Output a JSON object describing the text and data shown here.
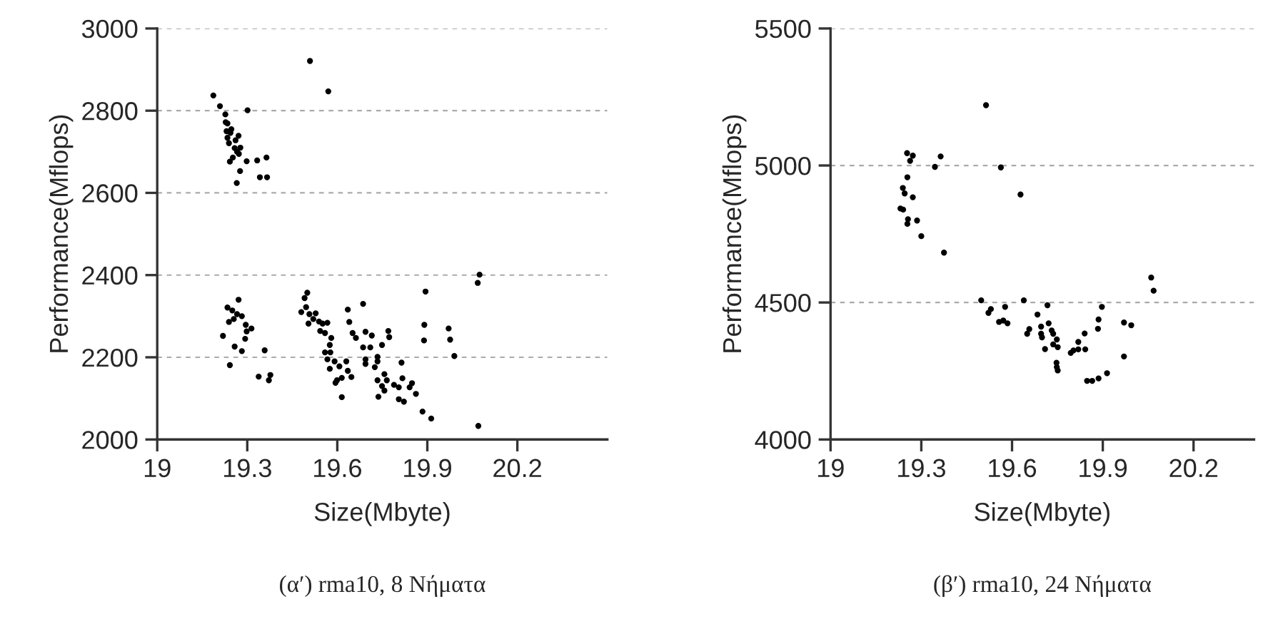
{
  "chart_data": [
    {
      "type": "scatter",
      "xlabel": "Size(Mbyte)",
      "ylabel": "Performance(Mflops)",
      "annotations": [
        "(α′) rma10, 8 Νήματα"
      ],
      "xlim": [
        19,
        20.5
      ],
      "xticks": [
        19,
        19.3,
        19.6,
        19.9,
        20.2
      ],
      "ylim": [
        2000,
        3000
      ],
      "yticks": [
        2000,
        2200,
        2400,
        2600,
        2800,
        3000
      ],
      "grid": "y",
      "marker": "circle",
      "legend": false,
      "series": [
        {
          "color": "#000000",
          "x": [
            19.187,
            19.209,
            19.227,
            19.228,
            19.234,
            19.231,
            19.247,
            19.244,
            19.234,
            19.239,
            19.261,
            19.271,
            19.258,
            19.277,
            19.266,
            19.272,
            19.252,
            19.242,
            19.301,
            19.298,
            19.333,
            19.364,
            19.276,
            19.265,
            19.342,
            19.366,
            19.509,
            19.57,
            19.894,
            20.068,
            20.074,
            19.271,
            19.234,
            19.25,
            19.266,
            19.282,
            19.239,
            19.255,
            19.295,
            19.314,
            19.298,
            19.219,
            19.293,
            19.258,
            19.282,
            19.358,
            19.242,
            19.338,
            19.377,
            19.372,
            19.5,
            19.491,
            19.48,
            19.496,
            19.507,
            19.52,
            19.528,
            19.539,
            19.504,
            19.551,
            19.567,
            19.543,
            19.559,
            19.58,
            19.575,
            19.559,
            19.577,
            19.567,
            19.591,
            19.575,
            19.63,
            19.607,
            19.635,
            19.647,
            19.599,
            19.615,
            19.594,
            19.615,
            19.635,
            19.64,
            19.686,
            19.651,
            19.662,
            19.694,
            19.715,
            19.686,
            19.71,
            19.694,
            19.694,
            19.734,
            19.734,
            19.749,
            19.77,
            19.773,
            19.725,
            19.814,
            19.757,
            19.734,
            19.765,
            19.749,
            19.737,
            19.757,
            19.789,
            19.805,
            19.817,
            19.841,
            19.849,
            19.862,
            19.805,
            19.822,
            19.884,
            19.913,
            20.07,
            19.89,
            19.889,
            19.971,
            19.976,
            19.99
          ],
          "values": [
            2837,
            2811,
            2791,
            2772,
            2769,
            2750,
            2755,
            2746,
            2734,
            2721,
            2728,
            2739,
            2709,
            2710,
            2700,
            2695,
            2686,
            2676,
            2801,
            2677,
            2679,
            2686,
            2653,
            2624,
            2638,
            2638,
            2921,
            2847,
            2360,
            2381,
            2401,
            2340,
            2321,
            2314,
            2305,
            2300,
            2286,
            2293,
            2279,
            2270,
            2263,
            2252,
            2245,
            2226,
            2215,
            2217,
            2181,
            2153,
            2157,
            2144,
            2357,
            2344,
            2310,
            2322,
            2305,
            2293,
            2307,
            2287,
            2282,
            2282,
            2284,
            2264,
            2259,
            2247,
            2230,
            2212,
            2212,
            2195,
            2190,
            2172,
            2190,
            2178,
            2167,
            2152,
            2144,
            2150,
            2138,
            2103,
            2316,
            2286,
            2330,
            2259,
            2247,
            2262,
            2253,
            2224,
            2224,
            2195,
            2184,
            2201,
            2190,
            2230,
            2264,
            2249,
            2176,
            2187,
            2159,
            2144,
            2144,
            2130,
            2104,
            2119,
            2133,
            2127,
            2149,
            2127,
            2137,
            2111,
            2098,
            2092,
            2068,
            2051,
            2033,
            2279,
            2241,
            2270,
            2243,
            2203
          ]
        }
      ]
    },
    {
      "type": "scatter",
      "xlabel": "Size(Mbyte)",
      "ylabel": "Performance(Mflops)",
      "annotations": [
        "(β′) rma10, 24 Νήματα"
      ],
      "xlim": [
        19,
        20.4
      ],
      "xticks": [
        19,
        19.3,
        19.6,
        19.9,
        20.2
      ],
      "ylim": [
        4000,
        5500
      ],
      "yticks": [
        4000,
        4500,
        5000,
        5500
      ],
      "grid": "y",
      "marker": "circle",
      "legend": false,
      "series": [
        {
          "color": "#000000",
          "x": [
            19.514,
            19.253,
            19.272,
            19.263,
            19.364,
            19.345,
            19.563,
            19.254,
            19.239,
            19.245,
            19.272,
            19.628,
            19.231,
            19.24,
            19.256,
            19.286,
            19.254,
            19.3,
            19.375,
            19.498,
            19.53,
            19.522,
            19.577,
            19.557,
            19.571,
            19.585,
            19.639,
            19.717,
            19.684,
            19.657,
            19.65,
            19.696,
            19.696,
            19.699,
            19.721,
            19.731,
            19.736,
            19.748,
            19.709,
            19.736,
            19.751,
            19.747,
            19.751,
            19.748,
            19.794,
            19.803,
            19.819,
            19.819,
            19.84,
            19.842,
            19.848,
            19.865,
            19.886,
            19.914,
            19.884,
            19.886,
            19.897,
            19.97,
            19.994,
            19.97,
            20.06,
            20.068
          ],
          "values": [
            5220,
            5045,
            5036,
            5017,
            5033,
            4995,
            4993,
            4957,
            4918,
            4898,
            4884,
            4894,
            4843,
            4839,
            4804,
            4799,
            4787,
            4742,
            4682,
            4508,
            4476,
            4462,
            4484,
            4429,
            4434,
            4424,
            4508,
            4490,
            4456,
            4403,
            4386,
            4412,
            4386,
            4373,
            4424,
            4398,
            4386,
            4365,
            4330,
            4347,
            4337,
            4280,
            4252,
            4264,
            4316,
            4325,
            4356,
            4329,
            4387,
            4329,
            4214,
            4214,
            4223,
            4242,
            4404,
            4438,
            4484,
            4427,
            4417,
            4303,
            4591,
            4543
          ]
        }
      ]
    }
  ]
}
